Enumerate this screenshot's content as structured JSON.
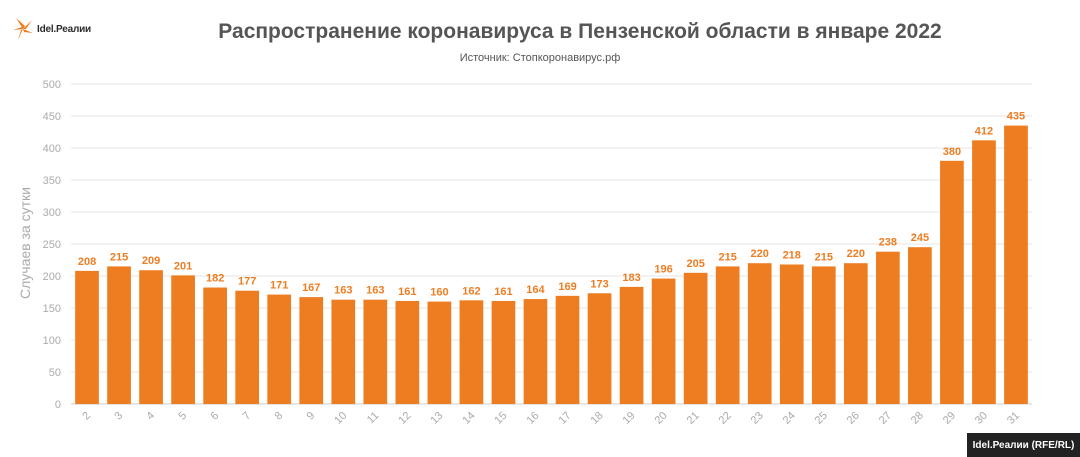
{
  "brand": {
    "logo_text": "Idel.Реалии",
    "footer": "Idel.Реалии (RFE/RL)"
  },
  "colors": {
    "bar": "#ee7d22",
    "label": "#ee7d22",
    "axis_text": "#aaaaaa",
    "grid": "#e6e6e6"
  },
  "chart_data": {
    "type": "bar",
    "title": "Распространение коронавируса в Пензенской области в январе 2022",
    "subtitle": "Источник: Стопкоронавирус.рф",
    "xlabel": "",
    "ylabel": "Случаев за сутки",
    "ylim": [
      0,
      500
    ],
    "yticks": [
      0,
      50,
      100,
      150,
      200,
      250,
      300,
      350,
      400,
      450,
      500
    ],
    "grid": true,
    "categories": [
      "2",
      "3",
      "4",
      "5",
      "6",
      "7",
      "8",
      "9",
      "10",
      "11",
      "12",
      "13",
      "14",
      "15",
      "16",
      "17",
      "18",
      "19",
      "20",
      "21",
      "22",
      "23",
      "24",
      "25",
      "26",
      "27",
      "28",
      "29",
      "30",
      "31"
    ],
    "values": [
      208,
      215,
      209,
      201,
      182,
      177,
      171,
      167,
      163,
      163,
      161,
      160,
      162,
      161,
      164,
      169,
      173,
      183,
      196,
      205,
      215,
      220,
      218,
      215,
      220,
      238,
      245,
      380,
      412,
      435
    ]
  }
}
